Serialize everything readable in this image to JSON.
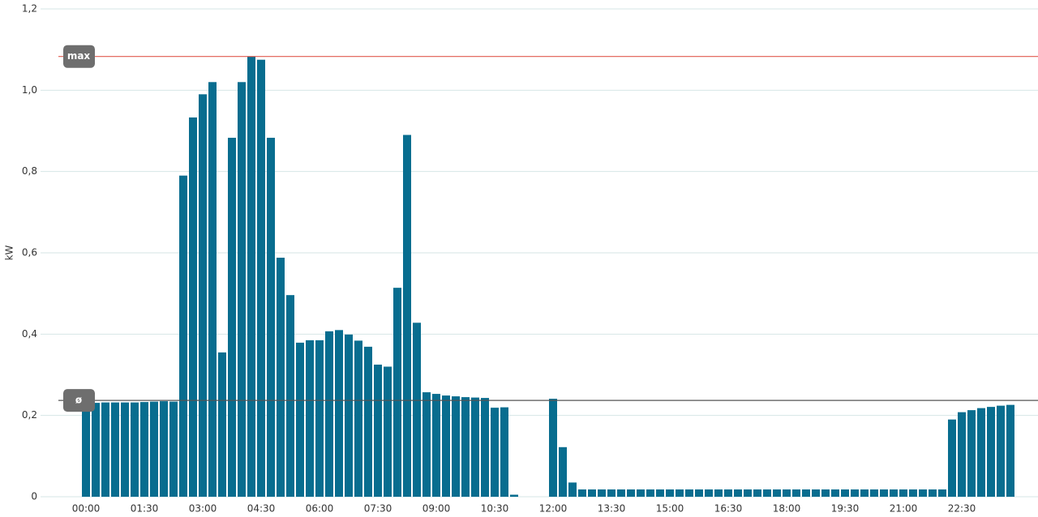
{
  "chart_data": {
    "type": "bar",
    "y_label": "kW",
    "categories": [
      "00:00",
      null,
      null,
      null,
      null,
      null,
      "01:30",
      null,
      null,
      null,
      null,
      null,
      "03:00",
      null,
      null,
      null,
      null,
      null,
      "04:30",
      null,
      null,
      null,
      null,
      null,
      "06:00",
      null,
      null,
      null,
      null,
      null,
      "07:30",
      null,
      null,
      null,
      null,
      null,
      "09:00",
      null,
      null,
      null,
      null,
      null,
      "10:30",
      null,
      null,
      null,
      null,
      null,
      "12:00",
      null,
      null,
      null,
      null,
      null,
      "13:30",
      null,
      null,
      null,
      null,
      null,
      "15:00",
      null,
      null,
      null,
      null,
      null,
      "16:30",
      null,
      null,
      null,
      null,
      null,
      "18:00",
      null,
      null,
      null,
      null,
      null,
      "19:30",
      null,
      null,
      null,
      null,
      null,
      "21:00",
      null,
      null,
      null,
      null,
      null,
      "22:30",
      null,
      null,
      null,
      null,
      null
    ],
    "values": [
      0.23,
      0.231,
      0.232,
      0.232,
      0.232,
      0.232,
      0.233,
      0.234,
      0.235,
      0.234,
      0.79,
      0.933,
      0.99,
      1.02,
      0.355,
      0.883,
      1.02,
      1.083,
      1.075,
      0.883,
      0.588,
      0.496,
      0.379,
      0.385,
      0.385,
      0.407,
      0.41,
      0.399,
      0.384,
      0.369,
      0.325,
      0.32,
      0.514,
      0.89,
      0.428,
      0.257,
      0.253,
      0.249,
      0.247,
      0.245,
      0.244,
      0.243,
      0.219,
      0.22,
      0.005,
      null,
      null,
      null,
      0.241,
      0.122,
      0.035,
      0.018,
      0.018,
      0.018,
      0.018,
      0.018,
      0.018,
      0.018,
      0.018,
      0.018,
      0.018,
      0.018,
      0.018,
      0.018,
      0.018,
      0.018,
      0.018,
      0.018,
      0.018,
      0.018,
      0.018,
      0.018,
      0.018,
      0.018,
      0.018,
      0.018,
      0.018,
      0.018,
      0.018,
      0.018,
      0.018,
      0.018,
      0.018,
      0.018,
      0.018,
      0.018,
      0.018,
      0.018,
      0.018,
      0.19,
      0.208,
      0.213,
      0.218,
      0.221,
      0.224,
      0.226
    ],
    "color": "#086d8f",
    "ylim": [
      0,
      1.2
    ],
    "yticks": [
      0,
      {
        "value": 0.2,
        "label": "0,2"
      },
      {
        "value": 0.4,
        "label": "0,4"
      },
      {
        "value": 0.6,
        "label": "0,6"
      },
      {
        "value": 0.8,
        "label": "0,8"
      },
      {
        "value": 1.0,
        "label": "1,0"
      },
      {
        "value": 1.2,
        "label": "1,2"
      }
    ],
    "grid": true,
    "reference_lines": [
      {
        "label": "max",
        "value": 1.083,
        "color": "#e05a4e"
      },
      {
        "label": "ø",
        "value": 0.237,
        "color": "#555555"
      }
    ]
  }
}
